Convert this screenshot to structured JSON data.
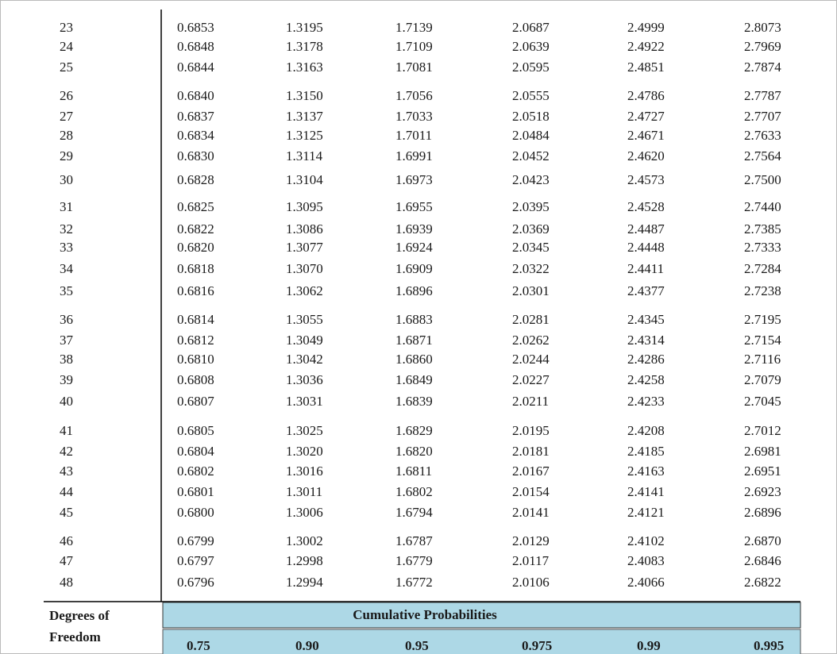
{
  "table": {
    "rows": [
      [
        "23",
        "0.6853",
        "1.3195",
        "1.7139",
        "2.0687",
        "2.4999",
        "2.8073"
      ],
      [
        "24",
        "0.6848",
        "1.3178",
        "1.7109",
        "2.0639",
        "2.4922",
        "2.7969"
      ],
      [
        "25",
        "0.6844",
        "1.3163",
        "1.7081",
        "2.0595",
        "2.4851",
        "2.7874"
      ],
      [
        "26",
        "0.6840",
        "1.3150",
        "1.7056",
        "2.0555",
        "2.4786",
        "2.7787"
      ],
      [
        "27",
        "0.6837",
        "1.3137",
        "1.7033",
        "2.0518",
        "2.4727",
        "2.7707"
      ],
      [
        "28",
        "0.6834",
        "1.3125",
        "1.7011",
        "2.0484",
        "2.4671",
        "2.7633"
      ],
      [
        "29",
        "0.6830",
        "1.3114",
        "1.6991",
        "2.0452",
        "2.4620",
        "2.7564"
      ],
      [
        "30",
        "0.6828",
        "1.3104",
        "1.6973",
        "2.0423",
        "2.4573",
        "2.7500"
      ],
      [
        "31",
        "0.6825",
        "1.3095",
        "1.6955",
        "2.0395",
        "2.4528",
        "2.7440"
      ],
      [
        "32",
        "0.6822",
        "1.3086",
        "1.6939",
        "2.0369",
        "2.4487",
        "2.7385"
      ],
      [
        "33",
        "0.6820",
        "1.3077",
        "1.6924",
        "2.0345",
        "2.4448",
        "2.7333"
      ],
      [
        "34",
        "0.6818",
        "1.3070",
        "1.6909",
        "2.0322",
        "2.4411",
        "2.7284"
      ],
      [
        "35",
        "0.6816",
        "1.3062",
        "1.6896",
        "2.0301",
        "2.4377",
        "2.7238"
      ],
      [
        "36",
        "0.6814",
        "1.3055",
        "1.6883",
        "2.0281",
        "2.4345",
        "2.7195"
      ],
      [
        "37",
        "0.6812",
        "1.3049",
        "1.6871",
        "2.0262",
        "2.4314",
        "2.7154"
      ],
      [
        "38",
        "0.6810",
        "1.3042",
        "1.6860",
        "2.0244",
        "2.4286",
        "2.7116"
      ],
      [
        "39",
        "0.6808",
        "1.3036",
        "1.6849",
        "2.0227",
        "2.4258",
        "2.7079"
      ],
      [
        "40",
        "0.6807",
        "1.3031",
        "1.6839",
        "2.0211",
        "2.4233",
        "2.7045"
      ],
      [
        "41",
        "0.6805",
        "1.3025",
        "1.6829",
        "2.0195",
        "2.4208",
        "2.7012"
      ],
      [
        "42",
        "0.6804",
        "1.3020",
        "1.6820",
        "2.0181",
        "2.4185",
        "2.6981"
      ],
      [
        "43",
        "0.6802",
        "1.3016",
        "1.6811",
        "2.0167",
        "2.4163",
        "2.6951"
      ],
      [
        "44",
        "0.6801",
        "1.3011",
        "1.6802",
        "2.0154",
        "2.4141",
        "2.6923"
      ],
      [
        "45",
        "0.6800",
        "1.3006",
        "1.6794",
        "2.0141",
        "2.4121",
        "2.6896"
      ],
      [
        "46",
        "0.6799",
        "1.3002",
        "1.6787",
        "2.0129",
        "2.4102",
        "2.6870"
      ],
      [
        "47",
        "0.6797",
        "1.2998",
        "1.6779",
        "2.0117",
        "2.4083",
        "2.6846"
      ],
      [
        "48",
        "0.6796",
        "1.2994",
        "1.6772",
        "2.0106",
        "2.4066",
        "2.6822"
      ]
    ],
    "df_header": [
      "Degrees of",
      "Freedom"
    ],
    "probability_header": "Cumulative Probabilities",
    "probabilities": [
      "0.75",
      "0.90",
      "0.95",
      "0.975",
      "0.99",
      "0.995"
    ]
  }
}
